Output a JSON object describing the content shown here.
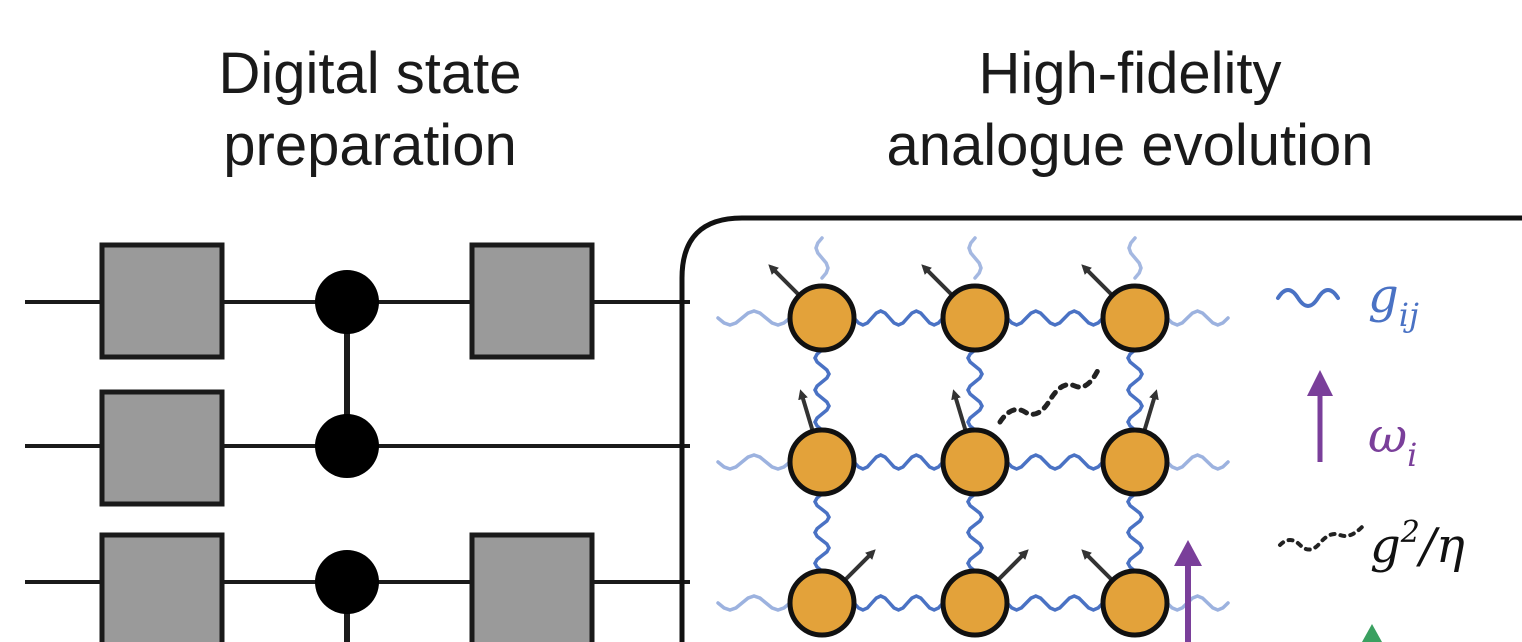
{
  "titles": {
    "left_line1": "Digital state",
    "left_line2": "preparation",
    "right_line1": "High-fidelity",
    "right_line2": "analogue evolution"
  },
  "legend": {
    "coupling": {
      "symbol": "g",
      "subscript": "ij",
      "color": "#4a72c4",
      "icon": "wavy-line-icon"
    },
    "frequency": {
      "symbol": "ω",
      "subscript": "i",
      "color": "#7a3f9a",
      "icon": "up-arrow-icon"
    },
    "effective": {
      "symbol": "g",
      "superscript": "2",
      "suffix": "/η",
      "color": "#111111",
      "icon": "dotted-wavy-line-icon"
    }
  },
  "colors": {
    "gate_fill": "#9a9a9a",
    "qubit_fill": "#e3a23a",
    "coupling": "#4a72c4",
    "frequency_arrow": "#7a3f9a",
    "spin_arrow": "#333333"
  }
}
